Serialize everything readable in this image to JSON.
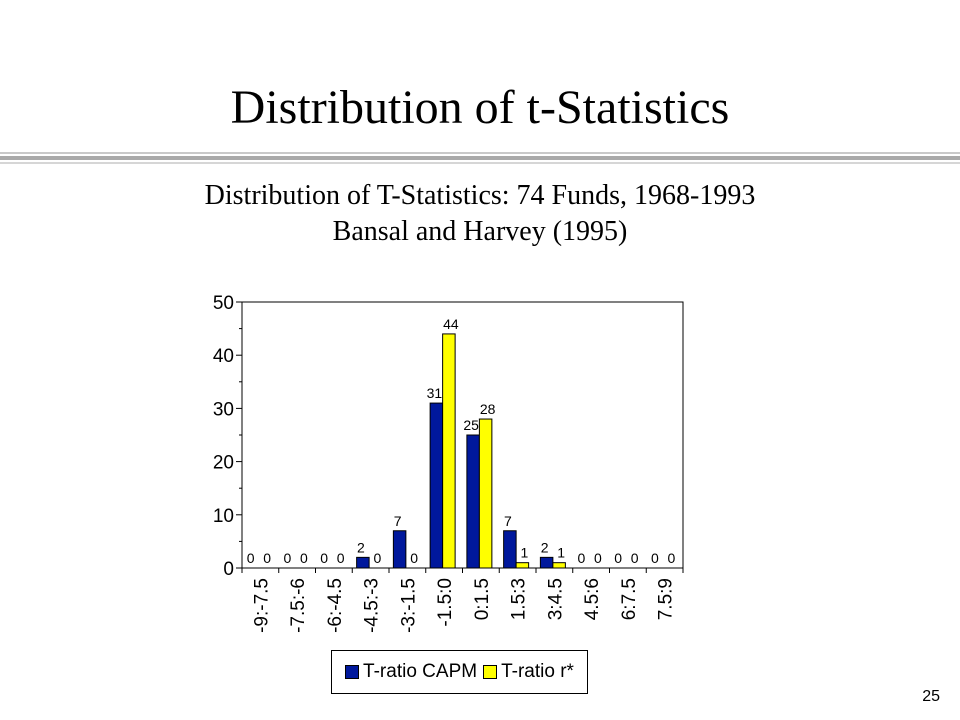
{
  "slide": {
    "title": "Distribution of t-Statistics",
    "page_number": "25"
  },
  "colors": {
    "series_1": "#00189c",
    "series_2": "#ffff00",
    "bar_outline": "#000000",
    "divider": "#a9a9a9"
  },
  "chart_data": {
    "type": "bar",
    "title": "Distribution of T-Statistics: 74 Funds, 1968-1993",
    "subtitle": "Bansal and Harvey (1995)",
    "xlabel": "",
    "ylabel": "",
    "ylim": [
      0,
      50
    ],
    "yticks": [
      "0",
      "10",
      "20",
      "30",
      "40",
      "50"
    ],
    "grid": false,
    "legend_position": "bottom",
    "categories": [
      "-9:-7.5",
      "-7.5:-6",
      "-6:-4.5",
      "-4.5:-3",
      "-3:-1.5",
      "-1.5:0",
      "0:1.5",
      "1.5:3",
      "3:4.5",
      "4.5:6",
      "6:7.5",
      "7.5:9"
    ],
    "series": [
      {
        "name": "T-ratio CAPM",
        "color": "#00189c",
        "values": [
          0,
          0,
          0,
          2,
          7,
          31,
          25,
          7,
          2,
          0,
          0,
          0
        ]
      },
      {
        "name": "T-ratio r*",
        "color": "#ffff00",
        "values": [
          0,
          0,
          0,
          0,
          0,
          44,
          28,
          1,
          1,
          0,
          0,
          0
        ]
      }
    ]
  }
}
